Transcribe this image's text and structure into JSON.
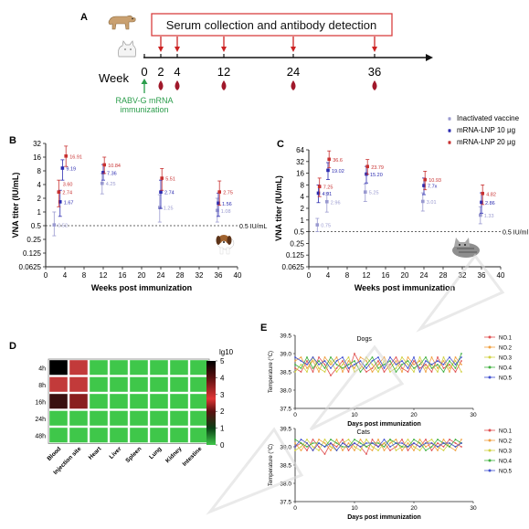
{
  "panels": {
    "A": {
      "label": "A",
      "banner": "Serum collection and antibody detection",
      "week_label": "Week",
      "weeks": [
        "0",
        "2",
        "4",
        "12",
        "24",
        "36"
      ],
      "immunization_line1": "RABV-G mRNA",
      "immunization_line2": "immunization",
      "colors": {
        "banner_border": "#d94040",
        "arrow": "#cc2222",
        "drop": "#a0182a",
        "green": "#2a9d4b"
      }
    },
    "B": {
      "label": "B"
    },
    "C": {
      "label": "C"
    },
    "D": {
      "label": "D",
      "colorbar_title": "lg10"
    },
    "E": {
      "label": "E"
    }
  },
  "chart_data": [
    {
      "id": "B",
      "type": "scatter",
      "xlabel": "Weeks post immunization",
      "ylabel": "VNA titer (IU/mL)",
      "log_scale_y": true,
      "yticks": [
        "32",
        "16",
        "8",
        "4",
        "2",
        "1",
        "0.5",
        "0.25",
        "0.125",
        "0.0625"
      ],
      "xticks": [
        "0",
        "4",
        "8",
        "12",
        "16",
        "20",
        "24",
        "28",
        "32",
        "36",
        "40"
      ],
      "xlim": [
        0,
        40
      ],
      "ylim": [
        0.0625,
        32
      ],
      "threshold": {
        "value": 0.5,
        "label": "0.5 IU/mL"
      },
      "series": [
        {
          "color": "#9a9ad0",
          "x": [
            2,
            12,
            24,
            36
          ],
          "values": [
            0.52,
            4.25,
            1.25,
            1.08
          ],
          "labels": [
            "0.52",
            "4.25",
            "1.25",
            "1.08"
          ],
          "err_low": [
            0.3,
            2.5,
            0.6,
            0.6
          ],
          "err_high": [
            1.0,
            7,
            2.4,
            2
          ]
        },
        {
          "color": "#2b2bb0",
          "x": [
            3,
            3.5,
            12,
            24,
            36
          ],
          "values": [
            1.67,
            9.19,
            7.36,
            2.74,
            1.56
          ],
          "labels": [
            "1.67",
            "9.19",
            "7.36",
            "2.74",
            "1.56"
          ],
          "err_low": [
            0.8,
            5,
            5,
            1.2,
            0.8
          ],
          "err_high": [
            3,
            14,
            11,
            5,
            2.6
          ]
        },
        {
          "color": "#c83030",
          "x": [
            2.5,
            4,
            12,
            24,
            36
          ],
          "values": [
            2.74,
            16.91,
            10.84,
            5.51,
            2.75
          ],
          "labels": [
            "2.74",
            "16.91",
            "10.84",
            "5.51",
            "2.75"
          ],
          "err_low": [
            1.3,
            10,
            7,
            3,
            1.4
          ],
          "err_high": [
            5,
            28,
            16,
            9,
            4.8
          ]
        }
      ],
      "extra_labels": [
        "3.60"
      ]
    },
    {
      "id": "C",
      "type": "scatter",
      "xlabel": "Weeks post immunization",
      "ylabel": "VNA titer (IU/mL)",
      "log_scale_y": true,
      "yticks": [
        "64",
        "32",
        "16",
        "8",
        "4",
        "2",
        "1",
        "0.5",
        "0.25",
        "0.125",
        "0.0625"
      ],
      "xticks": [
        "0",
        "4",
        "8",
        "12",
        "16",
        "20",
        "24",
        "28",
        "32",
        "36",
        "40"
      ],
      "xlim": [
        0,
        40
      ],
      "ylim": [
        0.0625,
        64
      ],
      "threshold": {
        "value": 0.5,
        "label": "0.5 IU/ml"
      },
      "legend": [
        "Inactivated vaccine",
        "mRNA-LNP 10 μg",
        "mRNA-LNP 20 μg"
      ],
      "series": [
        {
          "name": "Inactivated vaccine",
          "color": "#9a9ad0",
          "x": [
            2,
            4,
            12,
            24,
            36
          ],
          "values": [
            0.75,
            2.96,
            5.25,
            3.01,
            1.33
          ],
          "labels": [
            "0.75",
            "2.96",
            "5.25",
            "3.01",
            "1.33"
          ],
          "err_low": [
            0.5,
            1.6,
            3,
            1.7,
            0.8
          ],
          "err_high": [
            1.1,
            5,
            8.5,
            5,
            2.2
          ]
        },
        {
          "name": "mRNA-LNP 10 μg",
          "color": "#2b2bb0",
          "x": [
            2,
            4,
            12,
            24,
            36
          ],
          "values": [
            4.91,
            19.02,
            15.2,
            7.7,
            2.86
          ],
          "labels": [
            "4.91",
            "19.02",
            "15.20",
            "7.7x",
            "2.86"
          ],
          "err_low": [
            2.8,
            11,
            9,
            4.5,
            1.5
          ],
          "err_high": [
            8,
            30,
            24,
            12,
            5
          ]
        },
        {
          "name": "mRNA-LNP 20 μg",
          "color": "#c83030",
          "x": [
            2,
            4,
            12,
            24,
            36
          ],
          "values": [
            7.25,
            36.6,
            23.79,
            10.93,
            4.82
          ],
          "labels": [
            "7.25",
            "36.6",
            "23.79",
            "10.93",
            "4.82"
          ],
          "err_low": [
            4,
            22,
            15,
            6,
            2.5
          ],
          "err_high": [
            12,
            60,
            36,
            18,
            8
          ]
        }
      ]
    },
    {
      "id": "D",
      "type": "heatmap",
      "rows": [
        "4h",
        "8h",
        "16h",
        "24h",
        "48h"
      ],
      "columns": [
        "Blood",
        "Injection site",
        "Heart",
        "Liver",
        "Spleen",
        "Lung",
        "Kidney",
        "Intestine"
      ],
      "values": [
        [
          5,
          4,
          0,
          0,
          0,
          0,
          0,
          0
        ],
        [
          4,
          4,
          0,
          0,
          0,
          0,
          0,
          0
        ],
        [
          4.5,
          4.5,
          0,
          0,
          0,
          0,
          0,
          0
        ],
        [
          0,
          0,
          0,
          0,
          0,
          0,
          0,
          0
        ],
        [
          0,
          0,
          0,
          0,
          0,
          0,
          0,
          0
        ]
      ],
      "colorbar_ticks": [
        "5",
        "4",
        "3",
        "2",
        "1",
        "0"
      ],
      "colorbar_range": [
        0,
        5
      ]
    },
    {
      "id": "E1",
      "type": "line",
      "title": "Dogs",
      "xlabel": "Days post immunization",
      "ylabel": "Temperature (°C)",
      "xticks": [
        "0",
        "10",
        "20",
        "30"
      ],
      "yticks": [
        "39.5",
        "39.0",
        "38.5",
        "38.0",
        "37.5"
      ],
      "xlim": [
        0,
        30
      ],
      "ylim": [
        37.5,
        39.5
      ],
      "legend": [
        "NO.1",
        "NO.2",
        "NO.3",
        "NO.4",
        "NO.5"
      ],
      "colors": [
        "#e05050",
        "#f0a040",
        "#d0d040",
        "#40b040",
        "#4050d0"
      ],
      "x": [
        0,
        1,
        2,
        3,
        4,
        5,
        6,
        7,
        8,
        9,
        10,
        11,
        12,
        13,
        14,
        15,
        16,
        17,
        18,
        19,
        20,
        21,
        22,
        23,
        24,
        25,
        26,
        27,
        28
      ],
      "series": [
        {
          "name": "NO.1",
          "values": [
            38.6,
            38.5,
            38.8,
            38.5,
            38.9,
            38.7,
            38.4,
            38.6,
            38.8,
            38.5,
            39.0,
            38.7,
            38.5,
            38.6,
            38.8,
            38.5,
            38.7,
            38.9,
            38.6,
            38.5,
            38.8,
            38.6,
            38.7,
            38.5,
            38.9,
            38.6,
            38.7,
            38.5,
            38.8
          ]
        },
        {
          "name": "NO.2",
          "values": [
            38.8,
            38.9,
            38.6,
            38.8,
            38.5,
            38.9,
            38.7,
            38.9,
            38.5,
            38.8,
            38.6,
            38.9,
            38.8,
            38.5,
            38.7,
            38.9,
            38.6,
            38.8,
            38.5,
            38.9,
            38.7,
            38.8,
            38.5,
            38.9,
            38.6,
            38.8,
            38.5,
            38.9,
            38.7
          ]
        },
        {
          "name": "NO.3",
          "values": [
            38.5,
            38.7,
            38.5,
            38.9,
            38.6,
            38.5,
            38.8,
            38.5,
            38.7,
            38.9,
            38.5,
            38.6,
            38.9,
            38.7,
            38.5,
            38.8,
            38.5,
            38.6,
            38.9,
            38.7,
            38.5,
            38.9,
            38.6,
            38.7,
            38.5,
            38.9,
            38.6,
            38.8,
            38.5
          ]
        },
        {
          "name": "NO.4",
          "values": [
            38.7,
            38.6,
            38.9,
            38.6,
            38.8,
            38.6,
            38.9,
            38.7,
            38.6,
            38.7,
            38.8,
            38.5,
            38.7,
            38.9,
            38.6,
            38.7,
            38.8,
            38.5,
            38.7,
            38.8,
            38.6,
            38.7,
            38.9,
            38.6,
            38.7,
            38.5,
            38.8,
            38.6,
            39.0
          ]
        },
        {
          "name": "NO.5",
          "values": [
            38.9,
            38.8,
            38.7,
            38.9,
            38.7,
            38.8,
            38.6,
            38.8,
            38.9,
            38.6,
            38.7,
            38.8,
            38.6,
            38.8,
            38.9,
            38.6,
            38.9,
            38.7,
            38.8,
            38.6,
            38.9,
            38.5,
            38.8,
            38.7,
            38.8,
            38.7,
            38.9,
            38.7,
            38.9
          ]
        }
      ]
    },
    {
      "id": "E2",
      "type": "line",
      "title": "Cats",
      "xlabel": "Days post immunization",
      "ylabel": "Temperature (°C)",
      "xticks": [
        "0",
        "10",
        "20",
        "30"
      ],
      "yticks": [
        "39.5",
        "39.0",
        "38.5",
        "38.0",
        "37.5"
      ],
      "xlim": [
        0,
        30
      ],
      "ylim": [
        37.5,
        39.5
      ],
      "legend": [
        "NO.1",
        "NO.2",
        "NO.3",
        "NO.4",
        "NO.5"
      ],
      "colors": [
        "#e05050",
        "#f0a040",
        "#d0d040",
        "#40b040",
        "#4050d0"
      ],
      "x": [
        0,
        1,
        2,
        3,
        4,
        5,
        6,
        7,
        8,
        9,
        10,
        11,
        12,
        13,
        14,
        15,
        16,
        17,
        18,
        19,
        20,
        21,
        22,
        23,
        24,
        25,
        26,
        27,
        28
      ],
      "series": [
        {
          "name": "NO.1",
          "values": [
            39.0,
            39.1,
            38.9,
            39.2,
            39.0,
            38.8,
            39.1,
            39.0,
            39.2,
            38.9,
            39.1,
            39.0,
            38.8,
            39.2,
            39.0,
            39.1,
            38.9,
            39.0,
            39.2,
            38.9,
            39.1,
            39.0,
            39.2,
            38.9,
            39.1,
            39.0,
            39.2,
            39.1,
            39.0
          ]
        },
        {
          "name": "NO.2",
          "values": [
            39.1,
            38.9,
            39.1,
            38.9,
            39.2,
            39.1,
            38.9,
            39.2,
            38.9,
            39.1,
            38.9,
            39.2,
            39.0,
            38.9,
            39.2,
            38.9,
            39.1,
            39.2,
            38.9,
            39.1,
            38.9,
            39.2,
            39.0,
            39.1,
            38.9,
            39.2,
            39.0,
            38.9,
            39.2
          ]
        },
        {
          "name": "NO.3",
          "values": [
            38.9,
            39.0,
            39.2,
            39.0,
            38.9,
            39.2,
            39.0,
            38.9,
            39.1,
            39.2,
            39.0,
            38.9,
            39.2,
            39.0,
            38.9,
            39.1,
            39.2,
            38.9,
            39.0,
            39.2,
            39.0,
            38.9,
            39.1,
            39.2,
            39.0,
            38.9,
            39.1,
            39.0,
            39.1
          ]
        },
        {
          "name": "NO.4",
          "values": [
            39.2,
            39.1,
            39.0,
            39.1,
            39.1,
            39.0,
            39.2,
            39.1,
            39.0,
            39.0,
            39.2,
            39.1,
            39.0,
            39.1,
            39.1,
            39.0,
            39.2,
            39.1,
            39.0,
            39.0,
            39.2,
            39.1,
            38.9,
            39.0,
            39.2,
            39.1,
            39.0,
            39.2,
            39.1
          ]
        },
        {
          "name": "NO.5",
          "values": [
            39.0,
            39.2,
            39.1,
            38.9,
            39.1,
            39.0,
            39.1,
            38.9,
            39.1,
            39.0,
            39.1,
            39.0,
            39.1,
            39.1,
            39.0,
            39.2,
            39.0,
            39.1,
            39.1,
            39.0,
            39.1,
            39.0,
            39.1,
            39.1,
            39.0,
            39.1,
            39.1,
            39.0,
            39.1
          ]
        }
      ]
    }
  ]
}
